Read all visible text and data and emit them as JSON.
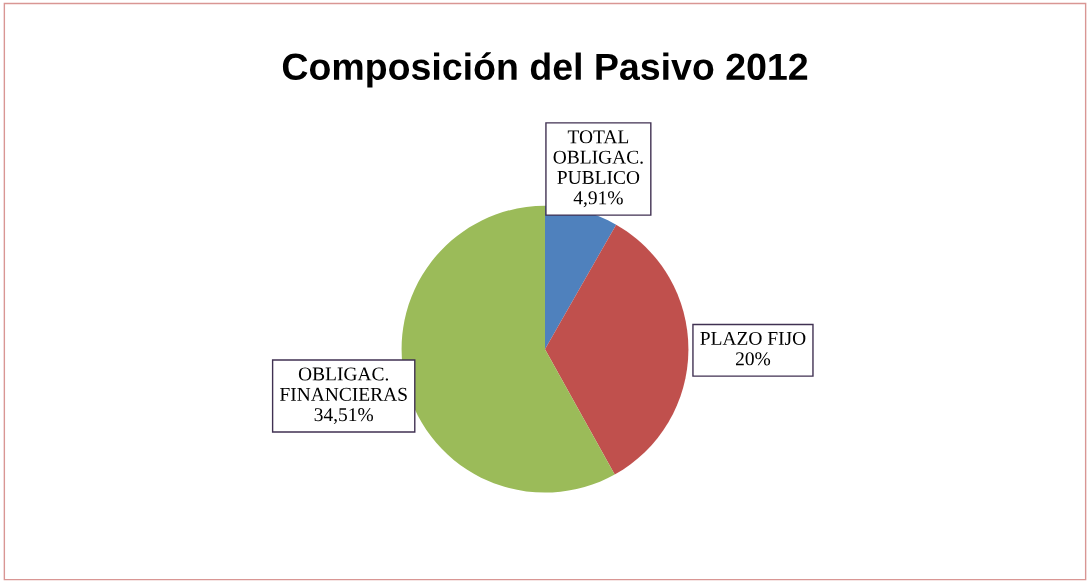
{
  "chart_data": {
    "type": "pie",
    "title": "Composición del Pasivo 2012",
    "categories": [
      "TOTAL\nOBLIGAC.\nPUBLICO",
      "PLAZO FIJO",
      "OBLIGAC.\nFINANCIERAS"
    ],
    "values": [
      4.91,
      20,
      34.51
    ],
    "value_labels": [
      "4,91%",
      "20%",
      "34,51%"
    ],
    "colors": [
      "#4f81bd",
      "#c0504d",
      "#9bbb59"
    ],
    "legend": false
  }
}
